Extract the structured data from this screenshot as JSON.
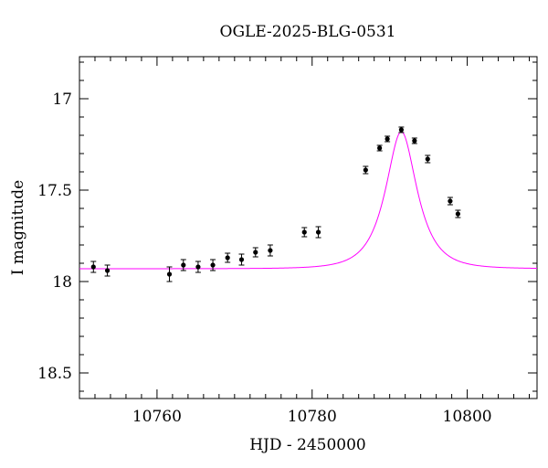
{
  "chart_data": {
    "type": "scatter",
    "title": "OGLE-2025-BLG-0531",
    "xlabel": "HJD - 2450000",
    "ylabel": "I magnitude",
    "xlim": [
      10750,
      10809
    ],
    "ylim": [
      18.64,
      16.77
    ],
    "y_inverted": true,
    "x_ticks": [
      10760,
      10780,
      10800
    ],
    "x_tick_labels": [
      "10760",
      "10780",
      "10800"
    ],
    "y_ticks": [
      17,
      17.5,
      18,
      18.5
    ],
    "y_tick_labels": [
      "17",
      "17.5",
      "18",
      "18.5"
    ],
    "grid": false,
    "colors": {
      "points": "#000000",
      "model": "#ff00ff",
      "frame": "#000000"
    },
    "series": [
      {
        "kind": "points",
        "x": [
          10751.8,
          10753.6,
          10761.6,
          10763.4,
          10765.3,
          10767.2,
          10769.1,
          10770.9,
          10772.7,
          10774.6,
          10779.0,
          10780.8,
          10786.9,
          10788.7,
          10789.7,
          10791.5,
          10793.2,
          10794.9,
          10797.8,
          10798.8
        ],
        "y": [
          17.92,
          17.94,
          17.96,
          17.91,
          17.92,
          17.91,
          17.87,
          17.88,
          17.84,
          17.83,
          17.73,
          17.73,
          17.39,
          17.27,
          17.22,
          17.17,
          17.23,
          17.33,
          17.56,
          17.63
        ],
        "yerr": [
          0.03,
          0.03,
          0.04,
          0.03,
          0.03,
          0.03,
          0.025,
          0.03,
          0.025,
          0.03,
          0.025,
          0.03,
          0.02,
          0.015,
          0.015,
          0.015,
          0.015,
          0.02,
          0.02,
          0.02
        ]
      },
      {
        "kind": "model",
        "baseline": 17.93,
        "peak": 17.18,
        "t0": 10791.5,
        "tE": 3.3,
        "x_range": [
          10750,
          10809
        ]
      }
    ]
  }
}
